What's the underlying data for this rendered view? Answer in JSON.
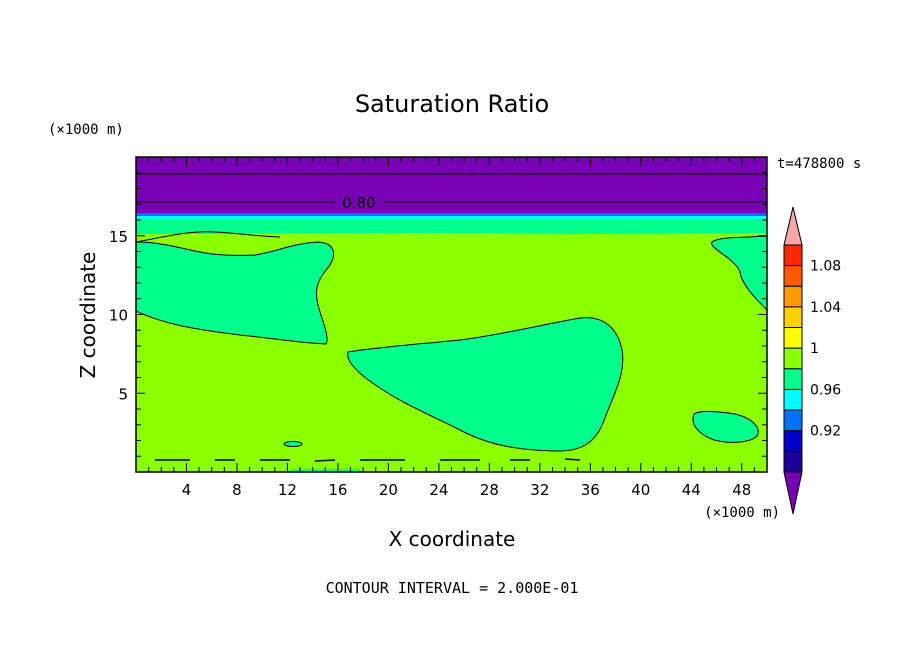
{
  "chart_data": {
    "type": "heatmap",
    "title": "Saturation Ratio",
    "xlabel": "X coordinate",
    "ylabel": "Z coordinate",
    "x_unit": "(×1000 m)",
    "y_unit": "(×1000 m)",
    "time_label": "t=478800 s",
    "footer": "CONTOUR INTERVAL = 2.000E-01",
    "contour_label": "0.80",
    "xlim": [
      0,
      50
    ],
    "ylim": [
      0,
      20
    ],
    "x_ticks": [
      4,
      8,
      12,
      16,
      20,
      24,
      28,
      32,
      36,
      40,
      44,
      48
    ],
    "y_ticks": [
      5,
      10,
      15
    ],
    "colorbar": {
      "labels": [
        "1.08",
        "1.04",
        "1",
        "0.96",
        "0.92"
      ],
      "colors": [
        "#f5a8a8",
        "#ff2a00",
        "#ff5a00",
        "#ff9a00",
        "#ffd000",
        "#ffff00",
        "#8cff00",
        "#00ff8c",
        "#00ffff",
        "#0070ff",
        "#0000c8",
        "#1a0096",
        "#7800b4"
      ]
    },
    "regions": {
      "above_16km": "purple (< 0.92)",
      "about_16km": "cyan band",
      "background": "green (1 to 1.02)",
      "patches": "teal (0.98 to 1)"
    }
  }
}
